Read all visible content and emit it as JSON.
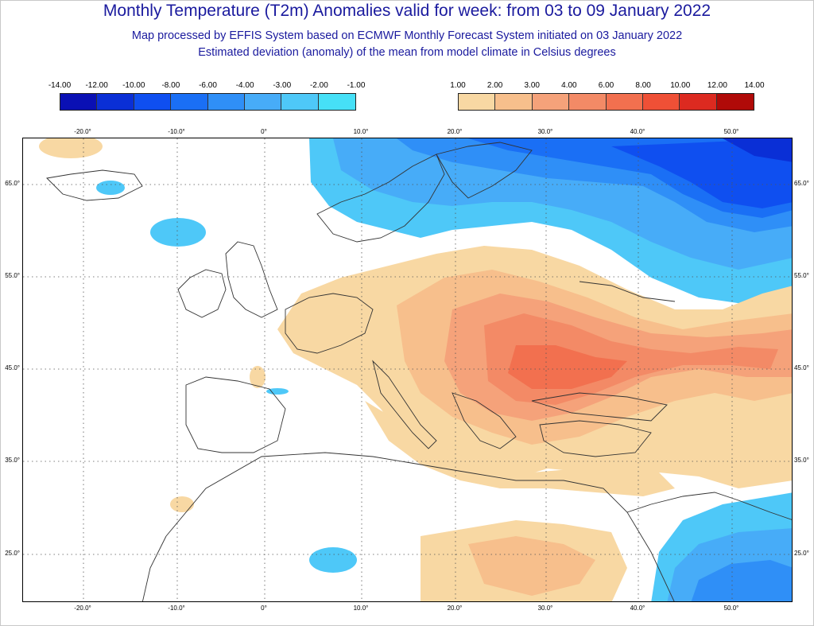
{
  "header": {
    "title": "Monthly Temperature (T2m) Anomalies valid for week: from 03 to 09 January 2022",
    "subtitle": "Map processed by EFFIS System based on ECMWF Monthly Forecast System initiated on 03 January 2022",
    "description": "Estimated deviation (anomaly) of the mean from model climate in Celsius degrees"
  },
  "legend_cold": {
    "labels": [
      "-14.00",
      "-12.00",
      "-10.00",
      "-8.00",
      "-6.00",
      "-4.00",
      "-3.00",
      "-2.00",
      "-1.00"
    ],
    "colors": [
      "#0a10b4",
      "#0a2fd6",
      "#0f4ff0",
      "#1a6ff5",
      "#2f8ff7",
      "#47acf8",
      "#4ec8f8",
      "#46e0f7"
    ]
  },
  "legend_warm": {
    "labels": [
      "1.00",
      "2.00",
      "3.00",
      "4.00",
      "6.00",
      "8.00",
      "10.00",
      "12.00",
      "14.00"
    ],
    "colors": [
      "#f8d8a3",
      "#f7bf8c",
      "#f5a27a",
      "#f38a66",
      "#f2704f",
      "#ef5036",
      "#dc2a20",
      "#b00a08"
    ]
  },
  "map": {
    "lon_labels": [
      "-20.0°",
      "-10.0°",
      "0°",
      "10.0°",
      "20.0°",
      "30.0°",
      "40.0°",
      "50.0°"
    ],
    "lat_labels": [
      "65.0°",
      "55.0°",
      "45.0°",
      "35.0°",
      "25.0°"
    ]
  }
}
